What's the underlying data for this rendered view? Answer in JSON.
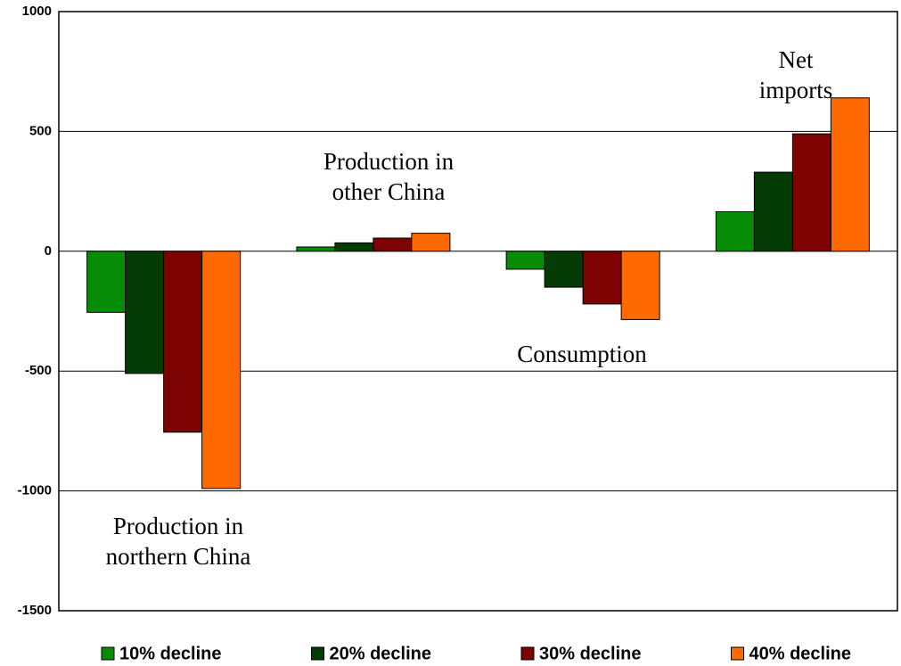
{
  "chart_data": {
    "type": "bar",
    "categories": [
      "Production in\nnorthern China",
      "Production in\nother China",
      "Consumption",
      "Net imports"
    ],
    "series": [
      {
        "name": "10% decline",
        "color": "#078c07",
        "values": [
          -255,
          18,
          -75,
          165
        ]
      },
      {
        "name": "20% decline",
        "color": "#053c05",
        "values": [
          -510,
          35,
          -150,
          330
        ]
      },
      {
        "name": "30% decline",
        "color": "#7d0303",
        "values": [
          -755,
          55,
          -220,
          490
        ]
      },
      {
        "name": "40% decline",
        "color": "#ff6a00",
        "values": [
          -990,
          75,
          -285,
          640
        ]
      }
    ],
    "ylim": [
      -1500,
      1000
    ],
    "yticks": [
      -1500,
      -1000,
      -500,
      0,
      500,
      1000
    ],
    "grid": true,
    "legend": "bottom"
  }
}
